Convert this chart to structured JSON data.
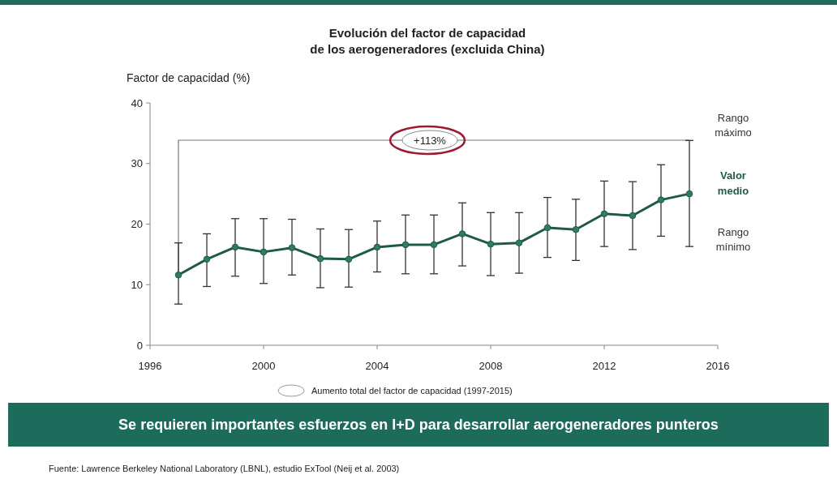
{
  "chart_data": {
    "type": "line",
    "title": "Evolución del factor de capacidad\nde los aerogeneradores (excluida China)",
    "ylabel": "Factor de capacidad (%)",
    "x": [
      1997,
      1998,
      1999,
      2000,
      2001,
      2002,
      2003,
      2004,
      2005,
      2006,
      2007,
      2008,
      2009,
      2010,
      2011,
      2012,
      2013,
      2014,
      2015
    ],
    "series": [
      {
        "color": "#1e5b45",
        "values": [
          11.6,
          14.2,
          16.2,
          15.4,
          16.1,
          14.3,
          14.2,
          16.2,
          16.6,
          16.6,
          18.4,
          16.7,
          16.9,
          19.4,
          19.1,
          21.7,
          21.4,
          24.0,
          25.0
        ],
        "errors": [
          [
            6.8,
            16.9
          ],
          [
            9.7,
            18.4
          ],
          [
            11.4,
            20.9
          ],
          [
            10.2,
            20.9
          ],
          [
            11.6,
            20.8
          ],
          [
            9.5,
            19.2
          ],
          [
            9.6,
            19.1
          ],
          [
            12.1,
            20.5
          ],
          [
            11.8,
            21.5
          ],
          [
            11.8,
            21.5
          ],
          [
            13.1,
            23.5
          ],
          [
            11.5,
            21.9
          ],
          [
            11.9,
            21.9
          ],
          [
            14.5,
            24.4
          ],
          [
            14.0,
            24.1
          ],
          [
            16.3,
            27.1
          ],
          [
            15.8,
            27.0
          ],
          [
            18.0,
            29.8
          ],
          [
            16.3,
            33.8
          ]
        ]
      }
    ],
    "xlim": [
      1996,
      2016
    ],
    "xticks": [
      1996,
      2000,
      2004,
      2008,
      2012,
      2016
    ],
    "ylim": [
      0,
      40
    ],
    "yticks": [
      0,
      10,
      20,
      30,
      40
    ],
    "grid": false,
    "marker": "circle",
    "line_style": "solid",
    "annotations": [
      "+113%",
      "Rango máximo",
      "Valor medio",
      "Rango mínimo",
      "Aumento total del factor de capacidad (1997-2015)",
      "Se requieren importantes esfuerzos en I+D para desarrollar aerogeneradores punteros",
      "Fuente: Lawrence Berkeley National Laboratory (LBNL), estudio ExTool (Neij et al. 2003)"
    ]
  }
}
